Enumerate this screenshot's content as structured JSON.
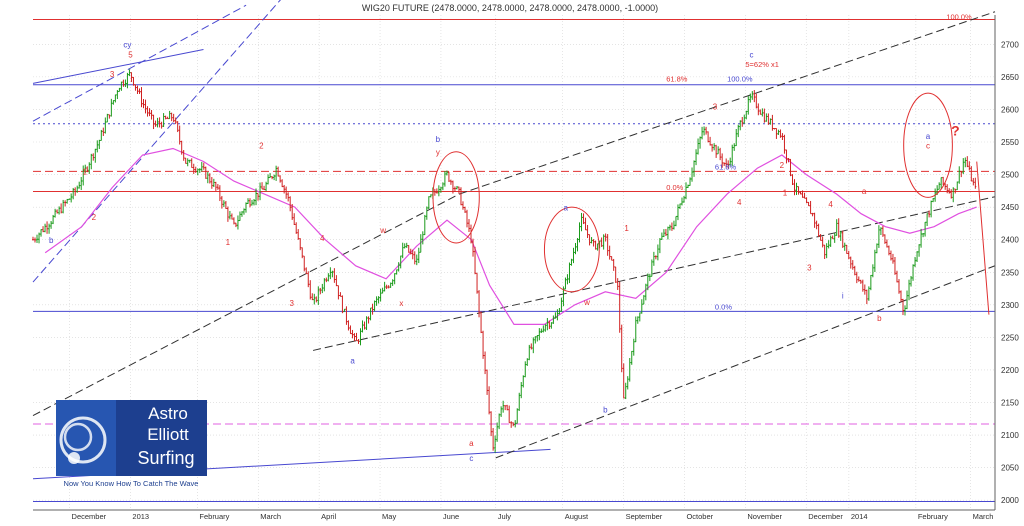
{
  "chart_data": {
    "type": "candlestick",
    "title": "WIG20 FUTURE (2478.0000, 2478.0000, 2478.0000, 2478.0000, -1.0000)",
    "ylim": [
      1985,
      2745
    ],
    "y_ticks": [
      2000,
      2050,
      2100,
      2150,
      2200,
      2250,
      2300,
      2350,
      2400,
      2450,
      2500,
      2550,
      2600,
      2650,
      2700
    ],
    "x_range": [
      0,
      15.8
    ],
    "x_ticks": [
      {
        "label": "December",
        "x": 0.6
      },
      {
        "label": "2013",
        "x": 1.6
      },
      {
        "label": "February",
        "x": 2.7
      },
      {
        "label": "March",
        "x": 3.7
      },
      {
        "label": "April",
        "x": 4.7
      },
      {
        "label": "May",
        "x": 5.7
      },
      {
        "label": "June",
        "x": 6.7
      },
      {
        "label": "July",
        "x": 7.6
      },
      {
        "label": "August",
        "x": 8.7
      },
      {
        "label": "September",
        "x": 9.7
      },
      {
        "label": "October",
        "x": 10.7
      },
      {
        "label": "November",
        "x": 11.7
      },
      {
        "label": "December",
        "x": 12.7
      },
      {
        "label": "2014",
        "x": 13.4
      },
      {
        "label": "February",
        "x": 14.5
      },
      {
        "label": "March",
        "x": 15.4
      }
    ],
    "price_path": [
      [
        0,
        2400
      ],
      [
        0.3,
        2430
      ],
      [
        0.7,
        2475
      ],
      [
        1.1,
        2555
      ],
      [
        1.4,
        2635
      ],
      [
        1.6,
        2655
      ],
      [
        1.8,
        2610
      ],
      [
        2.0,
        2575
      ],
      [
        2.3,
        2590
      ],
      [
        2.5,
        2520
      ],
      [
        2.8,
        2505
      ],
      [
        3.0,
        2480
      ],
      [
        3.3,
        2420
      ],
      [
        3.5,
        2455
      ],
      [
        3.8,
        2480
      ],
      [
        4.0,
        2510
      ],
      [
        4.2,
        2460
      ],
      [
        4.4,
        2380
      ],
      [
        4.6,
        2300
      ],
      [
        4.9,
        2360
      ],
      [
        5.1,
        2290
      ],
      [
        5.3,
        2240
      ],
      [
        5.6,
        2300
      ],
      [
        5.9,
        2340
      ],
      [
        6.1,
        2390
      ],
      [
        6.3,
        2365
      ],
      [
        6.5,
        2460
      ],
      [
        6.8,
        2500
      ],
      [
        7.0,
        2470
      ],
      [
        7.2,
        2400
      ],
      [
        7.3,
        2310
      ],
      [
        7.4,
        2220
      ],
      [
        7.55,
        2080
      ],
      [
        7.7,
        2150
      ],
      [
        7.9,
        2110
      ],
      [
        8.1,
        2220
      ],
      [
        8.4,
        2270
      ],
      [
        8.6,
        2280
      ],
      [
        8.9,
        2390
      ],
      [
        9.0,
        2430
      ],
      [
        9.2,
        2390
      ],
      [
        9.4,
        2400
      ],
      [
        9.6,
        2330
      ],
      [
        9.7,
        2150
      ],
      [
        9.9,
        2270
      ],
      [
        10.1,
        2340
      ],
      [
        10.3,
        2400
      ],
      [
        10.5,
        2420
      ],
      [
        10.8,
        2500
      ],
      [
        11.0,
        2570
      ],
      [
        11.2,
        2540
      ],
      [
        11.4,
        2510
      ],
      [
        11.6,
        2575
      ],
      [
        11.8,
        2620
      ],
      [
        12.0,
        2590
      ],
      [
        12.3,
        2560
      ],
      [
        12.5,
        2480
      ],
      [
        12.8,
        2440
      ],
      [
        13.0,
        2380
      ],
      [
        13.2,
        2420
      ],
      [
        13.5,
        2350
      ],
      [
        13.7,
        2310
      ],
      [
        13.9,
        2420
      ],
      [
        14.1,
        2370
      ],
      [
        14.3,
        2290
      ],
      [
        14.5,
        2380
      ],
      [
        14.7,
        2440
      ],
      [
        14.9,
        2490
      ],
      [
        15.1,
        2470
      ],
      [
        15.3,
        2525
      ],
      [
        15.5,
        2470
      ]
    ],
    "moving_average": [
      [
        0.2,
        2380
      ],
      [
        0.8,
        2420
      ],
      [
        1.3,
        2480
      ],
      [
        1.8,
        2530
      ],
      [
        2.3,
        2540
      ],
      [
        2.8,
        2520
      ],
      [
        3.3,
        2490
      ],
      [
        3.8,
        2470
      ],
      [
        4.3,
        2450
      ],
      [
        4.8,
        2400
      ],
      [
        5.3,
        2360
      ],
      [
        5.8,
        2340
      ],
      [
        6.3,
        2390
      ],
      [
        6.8,
        2430
      ],
      [
        7.2,
        2400
      ],
      [
        7.5,
        2330
      ],
      [
        7.9,
        2270
      ],
      [
        8.4,
        2270
      ],
      [
        8.9,
        2300
      ],
      [
        9.4,
        2320
      ],
      [
        9.9,
        2310
      ],
      [
        10.4,
        2350
      ],
      [
        10.9,
        2420
      ],
      [
        11.4,
        2470
      ],
      [
        11.9,
        2510
      ],
      [
        12.3,
        2530
      ],
      [
        12.7,
        2500
      ],
      [
        13.2,
        2470
      ],
      [
        13.6,
        2440
      ],
      [
        14.0,
        2420
      ],
      [
        14.4,
        2410
      ],
      [
        14.8,
        2420
      ],
      [
        15.2,
        2440
      ],
      [
        15.5,
        2450
      ]
    ],
    "horizontal_levels": [
      {
        "y": 2738,
        "color": "#e03030",
        "style": "solid",
        "label": "100.0%"
      },
      {
        "y": 2638,
        "color": "#4848d0",
        "style": "solid",
        "label": "100.0%"
      },
      {
        "y": 2578,
        "color": "#4848d0",
        "style": "dotted"
      },
      {
        "y": 2505,
        "color": "#e03030",
        "style": "dashed"
      },
      {
        "y": 2474,
        "color": "#e03030",
        "style": "solid",
        "label": "0.0%"
      },
      {
        "y": 2290,
        "color": "#4848d0",
        "style": "solid",
        "label": "0.0%"
      },
      {
        "y": 2117,
        "color": "#e060e0",
        "style": "dashed"
      },
      {
        "y": 1998,
        "color": "#4848d0",
        "style": "solid"
      }
    ],
    "trend_lines": [
      {
        "from": [
          0,
          2640
        ],
        "to": [
          2.8,
          2692
        ],
        "color": "#4848d0",
        "style": "solid"
      },
      {
        "from": [
          0,
          2582
        ],
        "to": [
          3.5,
          2760
        ],
        "color": "#4848d0",
        "style": "dashed"
      },
      {
        "from": [
          0,
          2335
        ],
        "to": [
          5.3,
          2900
        ],
        "color": "#4848d0",
        "style": "dashed"
      },
      {
        "from": [
          0,
          2033
        ],
        "to": [
          8.5,
          2078
        ],
        "color": "#4848d0",
        "style": "solid"
      },
      {
        "from": [
          0,
          2130
        ],
        "to": [
          7.0,
          2470
        ],
        "color": "#303030",
        "style": "dashed"
      },
      {
        "from": [
          7.0,
          2470
        ],
        "to": [
          15.8,
          2750
        ],
        "color": "#303030",
        "style": "dashed"
      },
      {
        "from": [
          4.6,
          2230
        ],
        "to": [
          15.8,
          2466
        ],
        "color": "#303030",
        "style": "dashed"
      },
      {
        "from": [
          7.6,
          2065
        ],
        "to": [
          15.8,
          2360
        ],
        "color": "#303030",
        "style": "dashed"
      },
      {
        "from": [
          15.5,
          2520
        ],
        "to": [
          15.7,
          2285
        ],
        "color": "#e03030",
        "style": "solid"
      }
    ],
    "fib_labels": [
      {
        "text": "100.0%",
        "x": 15.0,
        "y": 2735,
        "color": "#e03030"
      },
      {
        "text": "61.8%",
        "x": 10.4,
        "y": 2640,
        "color": "#e03030"
      },
      {
        "text": "100.0%",
        "x": 11.4,
        "y": 2640,
        "color": "#4848d0"
      },
      {
        "text": "5=62% x1",
        "x": 11.7,
        "y": 2662,
        "color": "#e03030"
      },
      {
        "text": "61.8%",
        "x": 11.2,
        "y": 2505,
        "color": "#4848d0"
      },
      {
        "text": "0.0%",
        "x": 10.4,
        "y": 2473,
        "color": "#e03030"
      },
      {
        "text": "0.0%",
        "x": 11.2,
        "y": 2290,
        "color": "#4848d0"
      }
    ],
    "circles": [
      {
        "cx": 6.95,
        "cy": 2465,
        "rx": 0.38,
        "ry": 70
      },
      {
        "cx": 8.85,
        "cy": 2385,
        "rx": 0.45,
        "ry": 65
      },
      {
        "cx": 14.7,
        "cy": 2545,
        "rx": 0.4,
        "ry": 80
      }
    ],
    "wave_labels": [
      {
        "text": "cy",
        "x": 1.55,
        "y": 2695,
        "color": "#4848d0"
      },
      {
        "text": "5",
        "x": 1.6,
        "y": 2680,
        "color": "#e03030"
      },
      {
        "text": "3",
        "x": 1.3,
        "y": 2650,
        "color": "#e03030"
      },
      {
        "text": "1",
        "x": 0.85,
        "y": 2500,
        "color": "#e03030"
      },
      {
        "text": "2",
        "x": 1.0,
        "y": 2430,
        "color": "#e03030"
      },
      {
        "text": "b",
        "x": 0.3,
        "y": 2395,
        "color": "#4848d0"
      },
      {
        "text": "2",
        "x": 3.75,
        "y": 2540,
        "color": "#e03030"
      },
      {
        "text": "1",
        "x": 3.2,
        "y": 2392,
        "color": "#e03030"
      },
      {
        "text": "3",
        "x": 4.25,
        "y": 2298,
        "color": "#e03030"
      },
      {
        "text": "4",
        "x": 4.75,
        "y": 2398,
        "color": "#e03030"
      },
      {
        "text": "a",
        "x": 5.25,
        "y": 2210,
        "color": "#4848d0"
      },
      {
        "text": "w",
        "x": 5.75,
        "y": 2410,
        "color": "#e03030"
      },
      {
        "text": "x",
        "x": 6.05,
        "y": 2298,
        "color": "#e03030"
      },
      {
        "text": "b",
        "x": 6.65,
        "y": 2550,
        "color": "#4848d0"
      },
      {
        "text": "y",
        "x": 6.65,
        "y": 2530,
        "color": "#e03030"
      },
      {
        "text": "a",
        "x": 7.2,
        "y": 2083,
        "color": "#e03030"
      },
      {
        "text": "c",
        "x": 7.2,
        "y": 2060,
        "color": "#4848d0"
      },
      {
        "text": "a",
        "x": 8.75,
        "y": 2445,
        "color": "#4848d0"
      },
      {
        "text": "w",
        "x": 9.1,
        "y": 2300,
        "color": "#e03030"
      },
      {
        "text": "b",
        "x": 9.4,
        "y": 2135,
        "color": "#4848d0"
      },
      {
        "text": "1",
        "x": 9.75,
        "y": 2413,
        "color": "#e03030"
      },
      {
        "text": "3",
        "x": 11.2,
        "y": 2600,
        "color": "#e03030"
      },
      {
        "text": "c",
        "x": 11.8,
        "y": 2680,
        "color": "#4848d0"
      },
      {
        "text": "4",
        "x": 11.6,
        "y": 2453,
        "color": "#e03030"
      },
      {
        "text": "1",
        "x": 12.35,
        "y": 2468,
        "color": "#e03030"
      },
      {
        "text": "2",
        "x": 12.3,
        "y": 2510,
        "color": "#e03030"
      },
      {
        "text": "3",
        "x": 12.75,
        "y": 2353,
        "color": "#e03030"
      },
      {
        "text": "4",
        "x": 13.1,
        "y": 2450,
        "color": "#e03030"
      },
      {
        "text": "i",
        "x": 13.3,
        "y": 2310,
        "color": "#4848d0"
      },
      {
        "text": "a",
        "x": 13.65,
        "y": 2470,
        "color": "#e03030"
      },
      {
        "text": "b",
        "x": 13.9,
        "y": 2275,
        "color": "#e03030"
      },
      {
        "text": "a",
        "x": 14.7,
        "y": 2555,
        "color": "#4848d0"
      },
      {
        "text": "c",
        "x": 14.7,
        "y": 2540,
        "color": "#e03030"
      },
      {
        "text": "?",
        "x": 15.15,
        "y": 2560,
        "color": "#e03030"
      }
    ]
  },
  "logo": {
    "line1": "Astro",
    "line2": "Elliott",
    "line3": "Surfing",
    "tagline": "Now You Know How To Catch The Wave"
  }
}
